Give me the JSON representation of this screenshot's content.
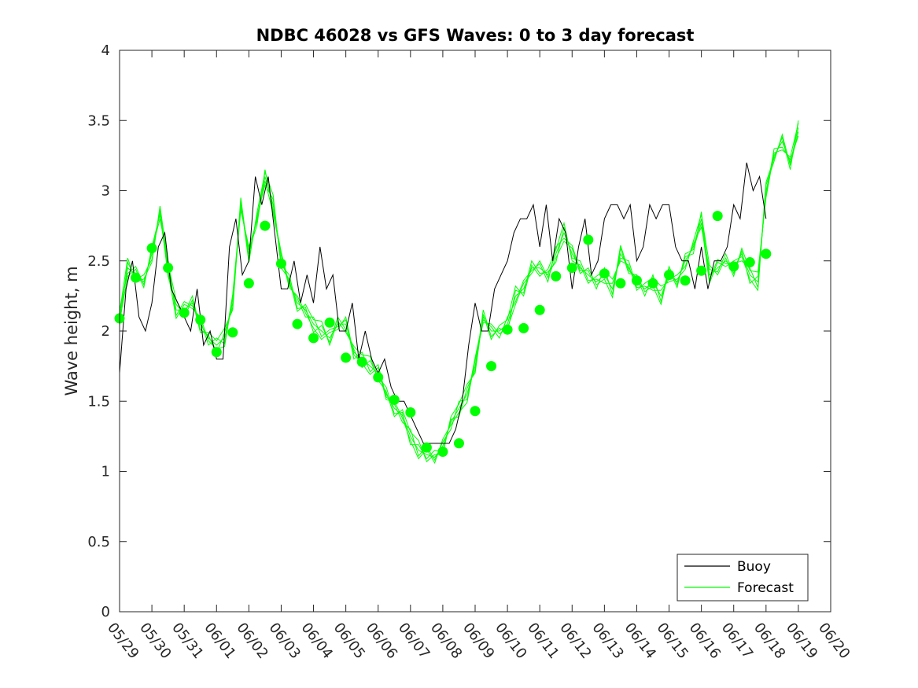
{
  "chart_data": {
    "type": "line",
    "title": "NDBC 46028 vs GFS Waves: 0 to 3 day forecast",
    "xlabel": "",
    "ylabel": "Wave height, m",
    "ylim": [
      0,
      4
    ],
    "yticks": [
      "0",
      "0.5",
      "1",
      "1.5",
      "2",
      "2.5",
      "3",
      "3.5",
      "4"
    ],
    "xticks": [
      "05/29",
      "05/30",
      "05/31",
      "06/01",
      "06/02",
      "06/03",
      "06/04",
      "06/05",
      "06/06",
      "06/07",
      "06/08",
      "06/09",
      "06/10",
      "06/11",
      "06/12",
      "06/13",
      "06/14",
      "06/15",
      "06/16",
      "06/17",
      "06/18",
      "06/19",
      "06/20"
    ],
    "x_unit": "days since 05/29",
    "legend": {
      "placement": "bottom-right",
      "entries": [
        "Buoy",
        "Forecast"
      ]
    },
    "colors": {
      "buoy": "#000000",
      "forecast": "#00ff00",
      "axis": "#262626"
    },
    "series": [
      {
        "name": "Buoy",
        "x": [
          0.0,
          0.2,
          0.4,
          0.6,
          0.8,
          1.0,
          1.2,
          1.4,
          1.6,
          1.8,
          2.0,
          2.2,
          2.4,
          2.6,
          2.8,
          3.0,
          3.2,
          3.4,
          3.6,
          3.8,
          4.0,
          4.2,
          4.4,
          4.6,
          4.8,
          5.0,
          5.2,
          5.4,
          5.6,
          5.8,
          6.0,
          6.2,
          6.4,
          6.6,
          6.8,
          7.0,
          7.2,
          7.4,
          7.6,
          7.8,
          8.0,
          8.2,
          8.4,
          8.6,
          8.8,
          9.0,
          9.2,
          9.4,
          9.6,
          9.8,
          10.0,
          10.2,
          10.4,
          10.6,
          10.8,
          11.0,
          11.2,
          11.4,
          11.6,
          11.8,
          12.0,
          12.2,
          12.4,
          12.6,
          12.8,
          13.0,
          13.2,
          13.4,
          13.6,
          13.8,
          14.0,
          14.2,
          14.4,
          14.6,
          14.8,
          15.0,
          15.2,
          15.4,
          15.6,
          15.8,
          16.0,
          16.2,
          16.4,
          16.6,
          16.8,
          17.0,
          17.2,
          17.4,
          17.6,
          17.8,
          18.0,
          18.2,
          18.4,
          18.6,
          18.8,
          19.0,
          19.2,
          19.4,
          19.6,
          19.8,
          20.0
        ],
        "y": [
          1.7,
          2.3,
          2.5,
          2.1,
          2.0,
          2.2,
          2.6,
          2.7,
          2.3,
          2.2,
          2.1,
          2.0,
          2.3,
          1.9,
          2.0,
          1.8,
          1.8,
          2.6,
          2.8,
          2.4,
          2.5,
          3.1,
          2.9,
          3.1,
          2.7,
          2.3,
          2.3,
          2.5,
          2.2,
          2.4,
          2.2,
          2.6,
          2.3,
          2.4,
          2.0,
          2.0,
          2.2,
          1.8,
          2.0,
          1.8,
          1.7,
          1.8,
          1.6,
          1.5,
          1.5,
          1.4,
          1.3,
          1.2,
          1.2,
          1.2,
          1.2,
          1.2,
          1.3,
          1.5,
          1.9,
          2.2,
          2.0,
          2.0,
          2.3,
          2.4,
          2.5,
          2.7,
          2.8,
          2.8,
          2.9,
          2.6,
          2.9,
          2.5,
          2.8,
          2.7,
          2.3,
          2.6,
          2.8,
          2.4,
          2.5,
          2.8,
          2.9,
          2.9,
          2.8,
          2.9,
          2.5,
          2.6,
          2.9,
          2.8,
          2.9,
          2.9,
          2.6,
          2.5,
          2.5,
          2.3,
          2.6,
          2.3,
          2.5,
          2.5,
          2.6,
          2.9,
          2.8,
          3.2,
          3.0,
          3.1,
          2.8
        ]
      },
      {
        "name": "Forecast",
        "x": [
          0.0,
          0.25,
          0.5,
          0.75,
          1.0,
          1.25,
          1.5,
          1.75,
          2.0,
          2.25,
          2.5,
          2.75,
          3.0,
          3.25,
          3.5,
          3.75,
          4.0,
          4.25,
          4.5,
          4.75,
          5.0,
          5.25,
          5.5,
          5.75,
          6.0,
          6.25,
          6.5,
          6.75,
          7.0,
          7.25,
          7.5,
          7.75,
          8.0,
          8.25,
          8.5,
          8.75,
          9.0,
          9.25,
          9.5,
          9.75,
          10.0,
          10.25,
          10.5,
          10.75,
          11.0,
          11.25,
          11.5,
          11.75,
          12.0,
          12.25,
          12.5,
          12.75,
          13.0,
          13.25,
          13.5,
          13.75,
          14.0,
          14.25,
          14.5,
          14.75,
          15.0,
          15.25,
          15.5,
          15.75,
          16.0,
          16.25,
          16.5,
          16.75,
          17.0,
          17.25,
          17.5,
          17.75,
          18.0,
          18.25,
          18.5,
          18.75,
          19.0,
          19.25,
          19.5,
          19.75,
          20.0,
          20.25,
          20.5,
          20.75,
          21.0
        ],
        "y": [
          2.1,
          2.45,
          2.4,
          2.35,
          2.55,
          2.85,
          2.45,
          2.15,
          2.15,
          2.2,
          2.05,
          1.95,
          1.9,
          1.95,
          2.2,
          2.9,
          2.55,
          2.8,
          3.1,
          2.9,
          2.5,
          2.35,
          2.2,
          2.15,
          2.05,
          2.0,
          1.95,
          2.05,
          2.05,
          1.85,
          1.8,
          1.75,
          1.7,
          1.55,
          1.45,
          1.4,
          1.25,
          1.15,
          1.12,
          1.1,
          1.18,
          1.35,
          1.45,
          1.55,
          1.75,
          2.1,
          2.0,
          2.0,
          2.05,
          2.25,
          2.3,
          2.45,
          2.45,
          2.4,
          2.55,
          2.7,
          2.55,
          2.45,
          2.4,
          2.35,
          2.4,
          2.3,
          2.55,
          2.45,
          2.35,
          2.3,
          2.35,
          2.25,
          2.4,
          2.35,
          2.5,
          2.6,
          2.8,
          2.4,
          2.45,
          2.5,
          2.45,
          2.55,
          2.4,
          2.35,
          3.0,
          3.25,
          3.35,
          3.2,
          3.45
        ]
      },
      {
        "name": "",
        "x": [
          0.0,
          0.5,
          1.0,
          1.5,
          2.0,
          2.5,
          3.0,
          3.5,
          4.0,
          4.5,
          5.0,
          5.5,
          6.0,
          6.5,
          7.0,
          7.5,
          8.0,
          8.5,
          9.0,
          9.5,
          10.0,
          10.5,
          11.0,
          11.5,
          12.0,
          12.5,
          13.0,
          13.5,
          14.0,
          14.5,
          15.0,
          15.5,
          16.0,
          16.5,
          17.0,
          17.5,
          18.0,
          18.5,
          19.0,
          19.5,
          20.0
        ],
        "y": [
          2.09,
          2.38,
          2.59,
          2.45,
          2.13,
          2.08,
          1.85,
          1.99,
          2.34,
          2.75,
          2.48,
          2.05,
          1.95,
          2.06,
          1.81,
          1.78,
          1.67,
          1.51,
          1.42,
          1.17,
          1.14,
          1.2,
          1.43,
          1.75,
          2.01,
          2.02,
          2.15,
          2.39,
          2.45,
          2.65,
          2.41,
          2.34,
          2.36,
          2.34,
          2.4,
          2.36,
          2.43,
          2.82,
          2.46,
          2.49,
          2.55
        ]
      }
    ]
  }
}
